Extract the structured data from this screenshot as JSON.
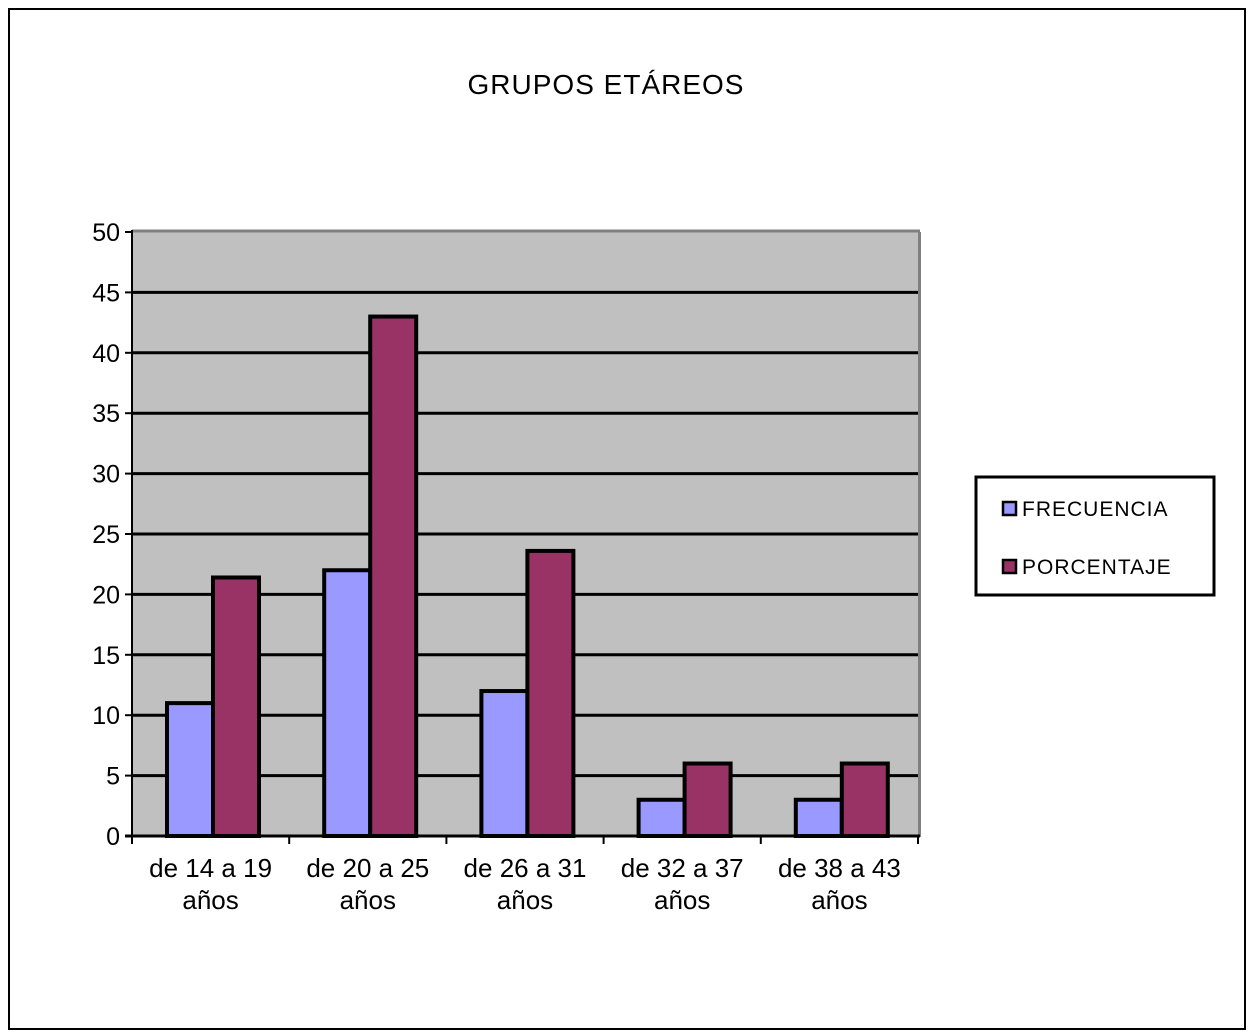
{
  "chart_data": {
    "type": "bar",
    "title": "GRUPOS ETÁREOS",
    "categories": [
      [
        "de 14 a 19",
        "años"
      ],
      [
        "de 20 a 25",
        "años"
      ],
      [
        "de 26 a 31",
        "años"
      ],
      [
        "de 32 a 37",
        "años"
      ],
      [
        "de 38 a 43",
        "años"
      ]
    ],
    "series": [
      {
        "name": "FRECUENCIA",
        "values": [
          11,
          22,
          12,
          3,
          3
        ],
        "color": "#9999ff"
      },
      {
        "name": "PORCENTAJE",
        "values": [
          21.4,
          43,
          23.6,
          6,
          6
        ],
        "color": "#993366"
      }
    ],
    "ylim": [
      0,
      50
    ],
    "yticks": [
      0,
      5,
      10,
      15,
      20,
      25,
      30,
      35,
      40,
      45,
      50
    ],
    "grid": true,
    "plot_background": "#c0c0c0",
    "legend_position": "right"
  }
}
